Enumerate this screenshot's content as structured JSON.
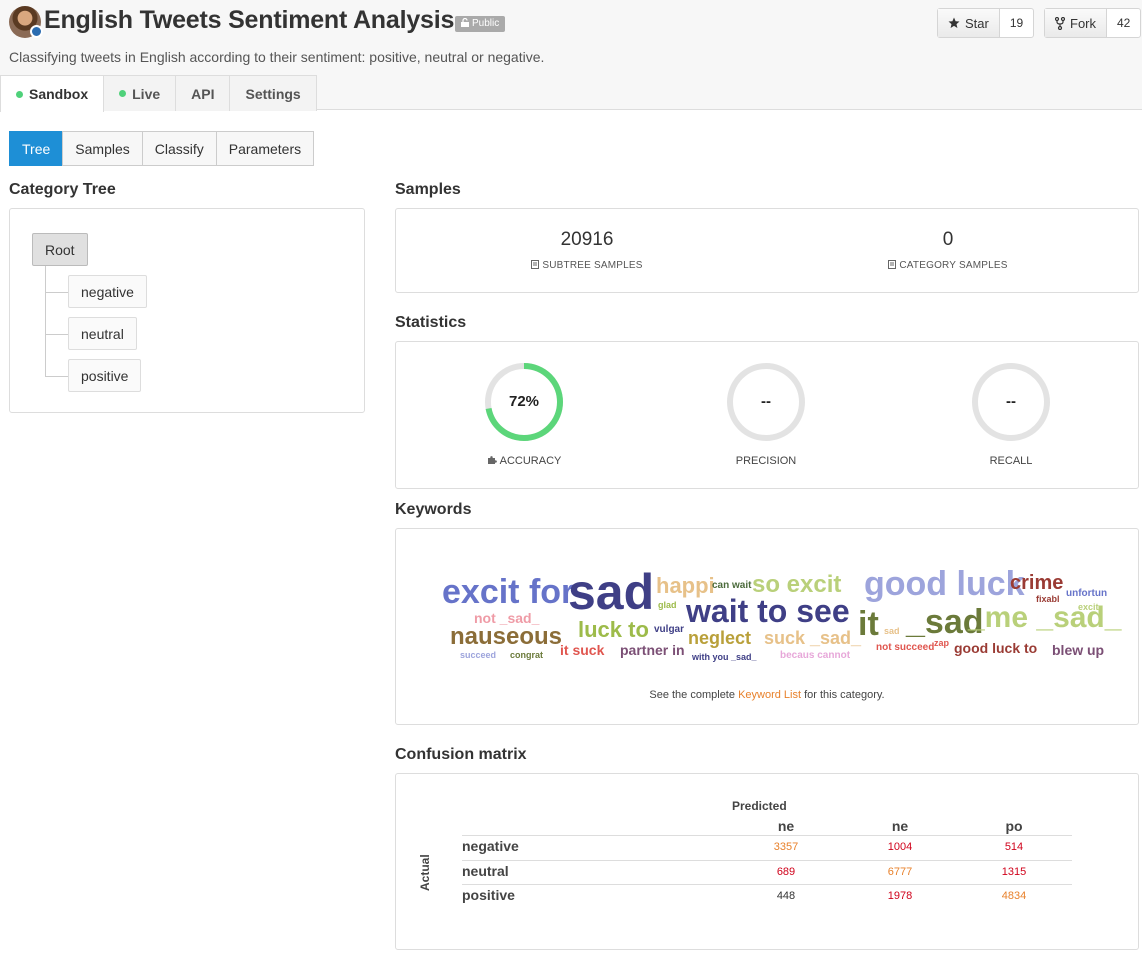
{
  "header": {
    "title": "English Tweets Sentiment Analysis",
    "visibility": "Public",
    "description": "Classifying tweets in English according to their sentiment: positive, neutral or negative.",
    "star_label": "Star",
    "star_count": "19",
    "fork_label": "Fork",
    "fork_count": "42"
  },
  "main_tabs": [
    {
      "label": "Sandbox",
      "status_dot": true
    },
    {
      "label": "Live",
      "status_dot": true
    },
    {
      "label": "API",
      "status_dot": false
    },
    {
      "label": "Settings",
      "status_dot": false
    }
  ],
  "sub_tabs": [
    "Tree",
    "Samples",
    "Classify",
    "Parameters"
  ],
  "category_tree": {
    "title": "Category Tree",
    "root": "Root",
    "children": [
      "negative",
      "neutral",
      "positive"
    ]
  },
  "samples": {
    "title": "Samples",
    "subtree_count": "20916",
    "subtree_label": "SUBTREE SAMPLES",
    "category_count": "0",
    "category_label": "CATEGORY SAMPLES"
  },
  "statistics": {
    "title": "Statistics",
    "accuracy_value": "72%",
    "accuracy_fraction": 0.72,
    "accuracy_label": "ACCURACY",
    "precision_value": "--",
    "precision_label": "PRECISION",
    "recall_value": "--",
    "recall_label": "RECALL",
    "accent_color": "#5cd67a"
  },
  "keywords": {
    "title": "Keywords",
    "footer_pre": "See the complete",
    "footer_link": "Keyword List",
    "footer_post": "for this category.",
    "words": [
      "excit for",
      "sad",
      "happi",
      "can wait",
      "so excit",
      "good luck",
      "crime",
      "unfortun",
      "not _sad_",
      "glad",
      "wait to see",
      "fixabl",
      "excit",
      "nauseous",
      "luck to",
      "vulgar",
      "neglect",
      "suck _sad_",
      "it",
      "_sad",
      "_me _sad_",
      "succeed",
      "congrat",
      "it suck",
      "partner in",
      "with you _sad_",
      "becaus cannot",
      "sad",
      "zap",
      "not succeed",
      "good luck to",
      "blew up"
    ]
  },
  "confusion_matrix": {
    "title": "Confusion matrix",
    "predicted_label": "Predicted",
    "actual_label": "Actual",
    "columns": [
      "ne",
      "ne",
      "po"
    ],
    "rows": [
      {
        "label": "negative",
        "values": [
          "3357",
          "1004",
          "514"
        ]
      },
      {
        "label": "neutral",
        "values": [
          "689",
          "6777",
          "1315"
        ]
      },
      {
        "label": "positive",
        "values": [
          "448",
          "1978",
          "4834"
        ]
      }
    ]
  }
}
